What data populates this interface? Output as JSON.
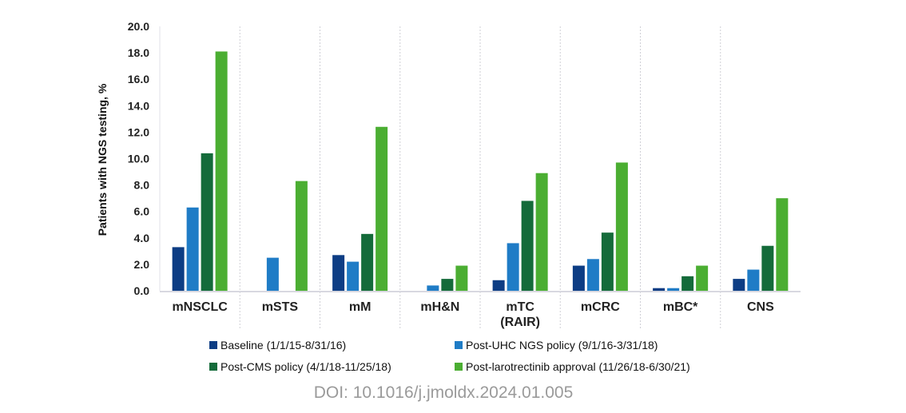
{
  "chart_data": {
    "type": "bar",
    "title": "",
    "xlabel": "",
    "ylabel": "Patients with NGS testing, %",
    "ylim": [
      0,
      20
    ],
    "yticks": [
      "0.0",
      "2.0",
      "4.0",
      "6.0",
      "8.0",
      "10.0",
      "12.0",
      "14.0",
      "16.0",
      "18.0",
      "20.0"
    ],
    "categories": [
      [
        "mNSCLC"
      ],
      [
        "mSTS"
      ],
      [
        "mM"
      ],
      [
        "mH&N"
      ],
      [
        "mTC",
        "(RAIR)"
      ],
      [
        "mCRC"
      ],
      [
        "mBC*"
      ],
      [
        "CNS"
      ]
    ],
    "series": [
      {
        "name": "Baseline (1/1/15-8/31/16)",
        "color": "#0d3d84",
        "values": [
          3.3,
          0.0,
          2.7,
          0.0,
          0.8,
          1.9,
          0.2,
          0.9
        ]
      },
      {
        "name": "Post-UHC NGS policy (9/1/16-3/31/18)",
        "color": "#1f7cc6",
        "values": [
          6.3,
          2.5,
          2.2,
          0.4,
          3.6,
          2.4,
          0.2,
          1.6
        ]
      },
      {
        "name": "Post-CMS policy (4/1/18-11/25/18)",
        "color": "#146b3a",
        "values": [
          10.4,
          0.0,
          4.3,
          0.9,
          6.8,
          4.4,
          1.1,
          3.4
        ]
      },
      {
        "name": "Post-larotrectinib approval (11/26/18-6/30/21)",
        "color": "#4bae32",
        "values": [
          18.1,
          8.3,
          12.4,
          1.9,
          8.9,
          9.7,
          1.9,
          7.0
        ]
      }
    ],
    "grid": "vertical dotted separators",
    "legend_position": "bottom"
  },
  "doi": "DOI: 10.1016/j.jmoldx.2024.01.005"
}
